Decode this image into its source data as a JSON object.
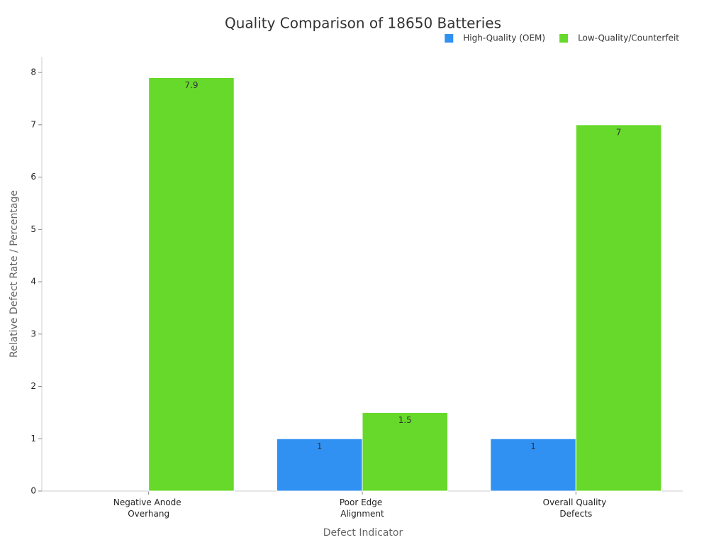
{
  "chart_data": {
    "type": "bar",
    "title": "Quality Comparison of 18650 Batteries",
    "x_label": "Defect Indicator",
    "y_label": "Relative Defect Rate / Percentage",
    "categories": [
      "Negative Anode Overhang",
      "Poor Edge Alignment",
      "Overall Quality Defects"
    ],
    "series": [
      {
        "name": "High-Quality (OEM)",
        "color": "#3091f2",
        "values": [
          null,
          1,
          1
        ]
      },
      {
        "name": "Low-Quality/Counterfeit",
        "color": "#66d92a",
        "values": [
          7.9,
          1.5,
          7
        ]
      }
    ],
    "ylim": [
      0,
      8.3
    ],
    "yticks": [
      0,
      1,
      2,
      3,
      4,
      5,
      6,
      7,
      8
    ],
    "legend": "top-right",
    "grid": false
  }
}
